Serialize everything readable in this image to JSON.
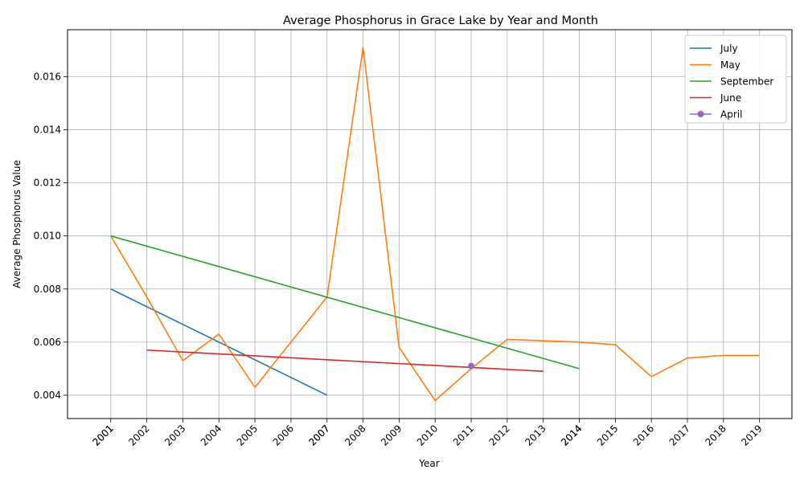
{
  "chart_data": {
    "type": "line",
    "title": "Average Phosphorus in Grace Lake by Year and Month",
    "xlabel": "Year",
    "ylabel": "Average Phosphorus Value",
    "xlim": [
      1999.8,
      2019.9
    ],
    "ylim": [
      0.00312,
      0.01777
    ],
    "x_ticks": [
      "2001",
      "2002",
      "2003",
      "2004",
      "2005",
      "2006",
      "2007",
      "2008",
      "2009",
      "2010",
      "2011",
      "2012",
      "2013",
      "2014",
      "2015",
      "2016",
      "2017",
      "2018",
      "2019"
    ],
    "x_ticks_duplicated": [
      "2001",
      "2007",
      "2014"
    ],
    "y_ticks": [
      "0.004",
      "0.006",
      "0.008",
      "0.010",
      "0.012",
      "0.014",
      "0.016"
    ],
    "y_tick_values": [
      0.004,
      0.006,
      0.008,
      0.01,
      0.012,
      0.014,
      0.016
    ],
    "grid": true,
    "legend_position": "top-right",
    "series": [
      {
        "name": "July",
        "color": "#1f77b4",
        "marker": false,
        "points": [
          [
            2001,
            0.008
          ],
          [
            2007,
            0.004
          ]
        ]
      },
      {
        "name": "May",
        "color": "#ff7f0e",
        "marker": false,
        "points": [
          [
            2001,
            0.01
          ],
          [
            2002,
            0.0077
          ],
          [
            2003,
            0.0053
          ],
          [
            2004,
            0.0063
          ],
          [
            2005,
            0.0043
          ],
          [
            2006,
            0.006
          ],
          [
            2007,
            0.0077
          ],
          [
            2008,
            0.0171
          ],
          [
            2009,
            0.0058
          ],
          [
            2010,
            0.0038
          ],
          [
            2011,
            0.005
          ],
          [
            2012,
            0.0061
          ],
          [
            2014,
            0.006
          ],
          [
            2015,
            0.0059
          ],
          [
            2016,
            0.0047
          ],
          [
            2017,
            0.0054
          ],
          [
            2018,
            0.0055
          ],
          [
            2019,
            0.0055
          ]
        ]
      },
      {
        "name": "September",
        "color": "#2ca02c",
        "marker": false,
        "points": [
          [
            2001,
            0.01
          ],
          [
            2014,
            0.005
          ]
        ]
      },
      {
        "name": "June",
        "color": "#d62728",
        "marker": false,
        "points": [
          [
            2002,
            0.0057
          ],
          [
            2013,
            0.0049
          ]
        ]
      },
      {
        "name": "April",
        "color": "#9467bd",
        "marker": true,
        "points": [
          [
            2011,
            0.0051
          ]
        ]
      }
    ]
  }
}
